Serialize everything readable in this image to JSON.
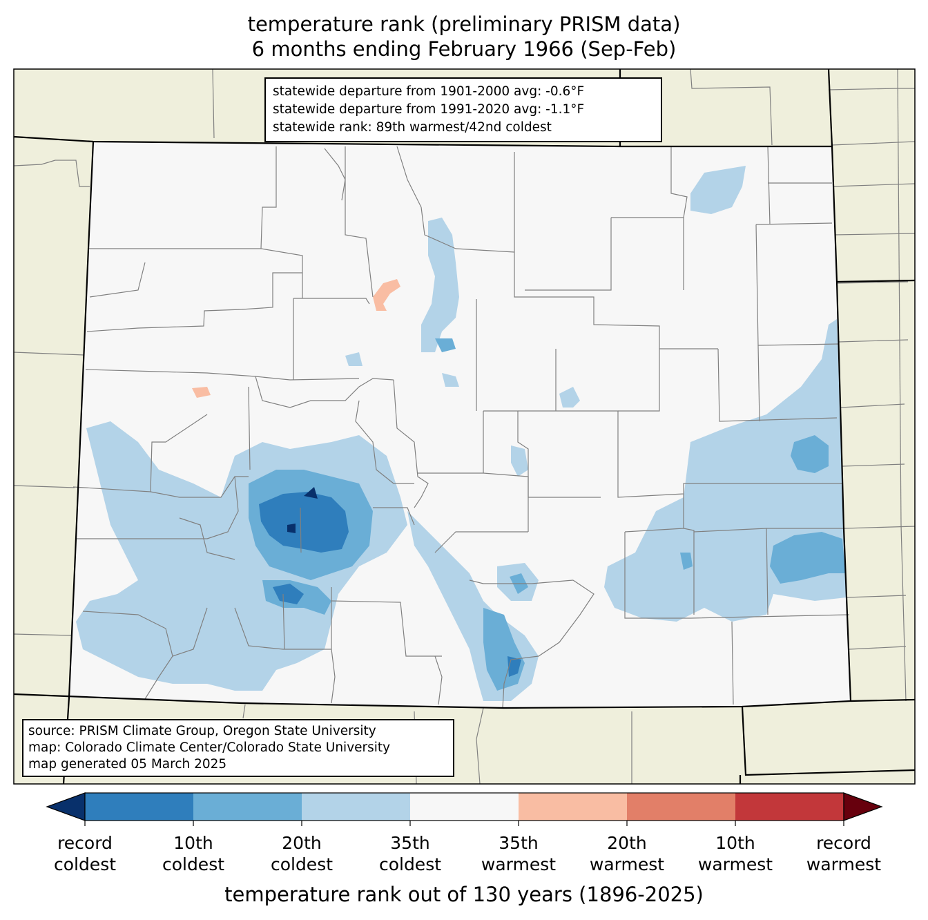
{
  "title": {
    "line1": "temperature rank (preliminary PRISM data)",
    "line2": "6 months ending February 1966 (Sep-Feb)"
  },
  "stats": {
    "dep_1901_2000": "statewide departure from 1901-2000 avg: -0.6°F",
    "dep_1991_2020": "statewide departure from 1991-2020 avg: -1.1°F",
    "rank": "statewide rank: 89th warmest/42nd coldest"
  },
  "source": {
    "line1": "source: PRISM Climate Group, Oregon State University",
    "line2": "map: Colorado Climate Center/Colorado State University",
    "line3": "map generated 05 March 2025"
  },
  "colorbar": {
    "title": "temperature rank out of 130 years (1896-2025)",
    "ticks": [
      {
        "line1": "record",
        "line2": "coldest"
      },
      {
        "line1": "10th",
        "line2": "coldest"
      },
      {
        "line1": "20th",
        "line2": "coldest"
      },
      {
        "line1": "35th",
        "line2": "coldest"
      },
      {
        "line1": "35th",
        "line2": "warmest"
      },
      {
        "line1": "20th",
        "line2": "warmest"
      },
      {
        "line1": "10th",
        "line2": "warmest"
      },
      {
        "line1": "record",
        "line2": "warmest"
      }
    ],
    "colors": [
      "#08306b",
      "#2f7ebc",
      "#6aaed6",
      "#b3d3e8",
      "#f7f7f7",
      "#f9bda3",
      "#e27f68",
      "#c2373a",
      "#67000d"
    ]
  },
  "colors": {
    "outside_land": "#efefdc",
    "state_fill": "#f7f7f7",
    "county_lines": "#808080",
    "state_lines": "#000000"
  }
}
